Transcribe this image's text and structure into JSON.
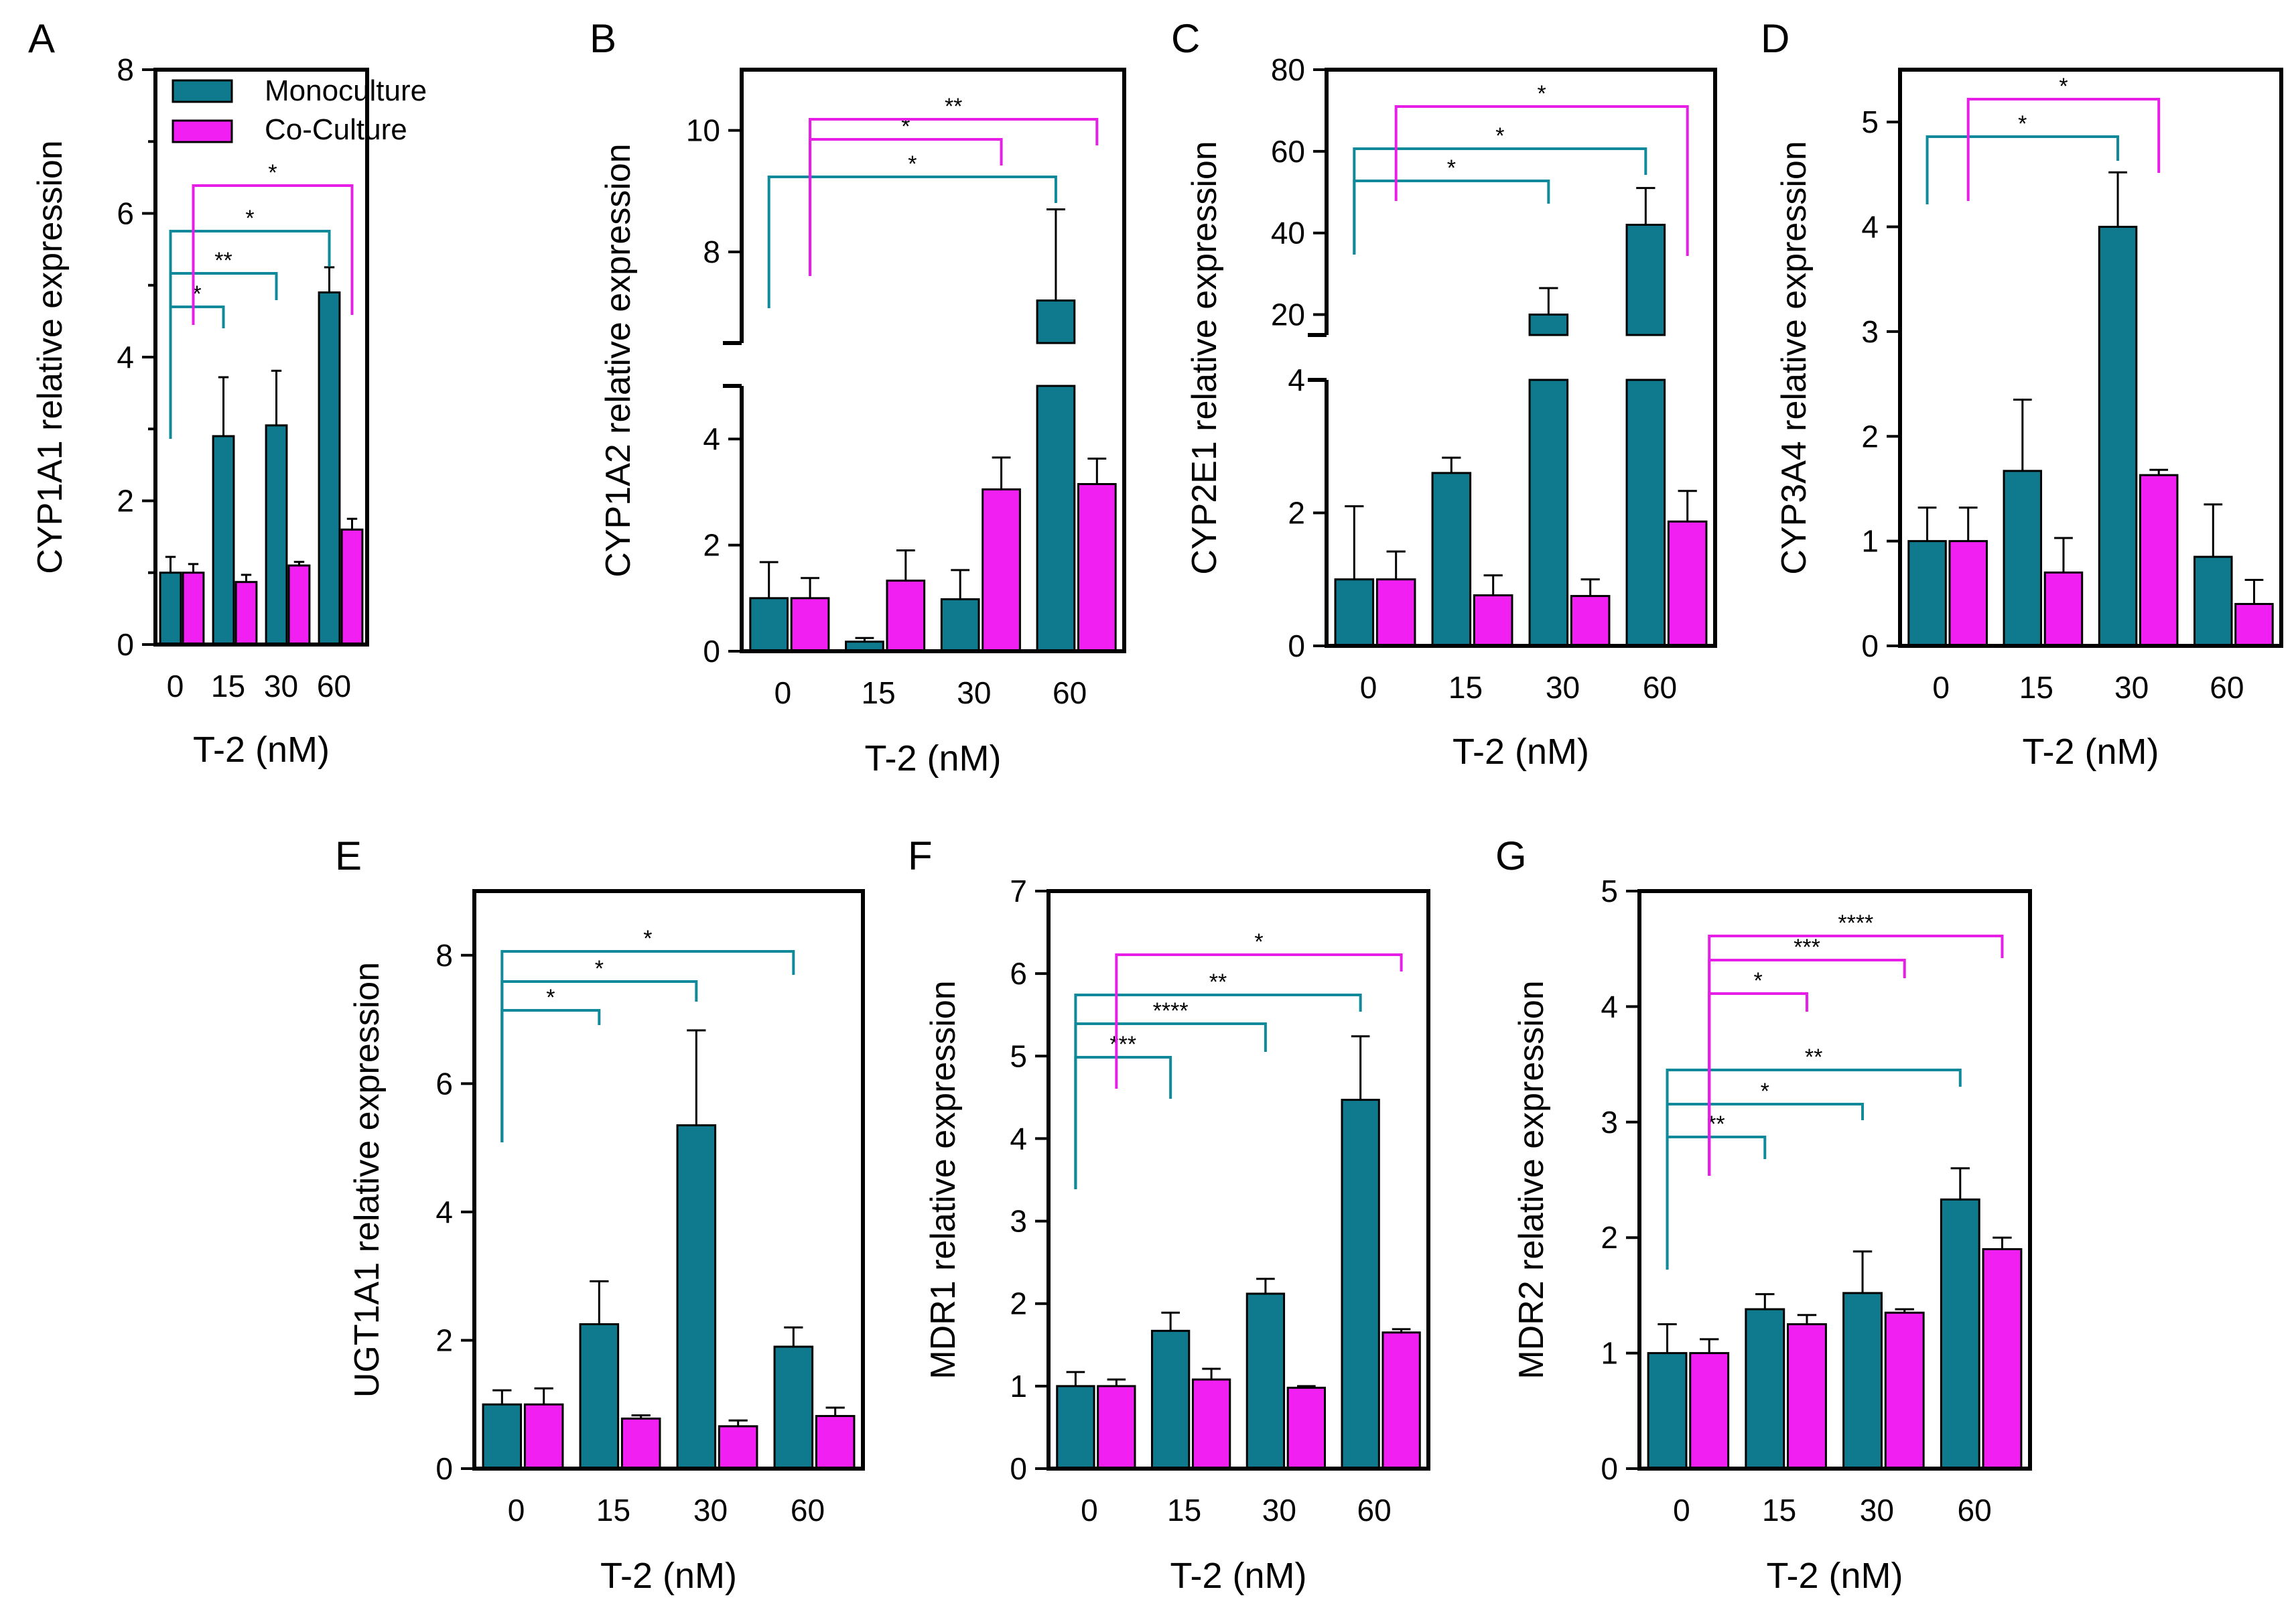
{
  "colors": {
    "mono": "#0f7a8e",
    "co": "#f21ff2",
    "sig_mono": "#108a9b",
    "sig_co": "#e61ee6"
  },
  "legend": {
    "mono": "Monoculture",
    "co": "Co-Culture"
  },
  "chart_data": [
    {
      "type": "bar",
      "panel": "A",
      "ylabel": "CYP1A1 relative expression",
      "xlabel": "T-2 (nM)",
      "categories": [
        "0",
        "15",
        "30",
        "60"
      ],
      "ylim": [
        0,
        8
      ],
      "yticks": [
        0,
        2,
        4,
        6,
        8
      ],
      "series": [
        {
          "name": "Monoculture",
          "values": [
            1.0,
            2.9,
            3.05,
            4.9
          ],
          "errors": [
            0.22,
            0.82,
            0.76,
            0.35
          ]
        },
        {
          "name": "Co-Culture",
          "values": [
            1.0,
            0.87,
            1.1,
            1.6
          ],
          "errors": [
            0.12,
            0.1,
            0.05,
            0.15
          ]
        }
      ],
      "significance": [
        {
          "series": "Monoculture",
          "from": "0",
          "to": "15",
          "label": "*"
        },
        {
          "series": "Monoculture",
          "from": "0",
          "to": "30",
          "label": "**"
        },
        {
          "series": "Monoculture",
          "from": "0",
          "to": "60",
          "label": "*"
        },
        {
          "series": "Co-Culture",
          "from": "0",
          "to": "60",
          "label": "*"
        }
      ]
    },
    {
      "type": "bar",
      "panel": "B",
      "ylabel": "CYP1A2 relative expression",
      "xlabel": "T-2 (nM)",
      "categories": [
        "0",
        "15",
        "30",
        "60"
      ],
      "axis_break": {
        "lower": [
          0,
          5
        ],
        "upper": [
          6.5,
          11
        ]
      },
      "yticks": [
        0,
        2,
        4,
        8,
        10
      ],
      "series": [
        {
          "name": "Monoculture",
          "values": [
            1.0,
            0.18,
            0.98,
            7.2
          ],
          "errors": [
            0.68,
            0.07,
            0.55,
            1.5
          ]
        },
        {
          "name": "Co-Culture",
          "values": [
            1.0,
            1.33,
            3.05,
            3.15
          ],
          "errors": [
            0.38,
            0.57,
            0.6,
            0.48
          ]
        }
      ],
      "significance": [
        {
          "series": "Monoculture",
          "from": "0",
          "to": "60",
          "label": "*"
        },
        {
          "series": "Co-Culture",
          "from": "0",
          "to": "30",
          "label": "*"
        },
        {
          "series": "Co-Culture",
          "from": "0",
          "to": "60",
          "label": "**"
        }
      ]
    },
    {
      "type": "bar",
      "panel": "C",
      "ylabel": "CYP2E1 relative expression",
      "xlabel": "T-2 (nM)",
      "categories": [
        "0",
        "15",
        "30",
        "60"
      ],
      "axis_break": {
        "lower": [
          0,
          4
        ],
        "upper": [
          15,
          80
        ]
      },
      "yticks": [
        0,
        2,
        4,
        20,
        40,
        60,
        80
      ],
      "series": [
        {
          "name": "Monoculture",
          "values": [
            1.0,
            2.6,
            20.0,
            42.0
          ],
          "errors": [
            1.1,
            0.23,
            6.5,
            9.0
          ]
        },
        {
          "name": "Co-Culture",
          "values": [
            1.0,
            0.76,
            0.75,
            1.87
          ],
          "errors": [
            0.42,
            0.3,
            0.25,
            0.46
          ]
        }
      ],
      "significance": [
        {
          "series": "Monoculture",
          "from": "0",
          "to": "30",
          "label": "*"
        },
        {
          "series": "Monoculture",
          "from": "0",
          "to": "60",
          "label": "*"
        },
        {
          "series": "Co-Culture",
          "from": "0",
          "to": "60",
          "label": "*"
        }
      ]
    },
    {
      "type": "bar",
      "panel": "D",
      "ylabel": "CYP3A4 relative expression",
      "xlabel": "T-2 (nM)",
      "categories": [
        "0",
        "15",
        "30",
        "60"
      ],
      "ylim": [
        0,
        5.5
      ],
      "yticks": [
        0,
        1,
        2,
        3,
        4,
        5
      ],
      "series": [
        {
          "name": "Monoculture",
          "values": [
            1.0,
            1.67,
            4.0,
            0.85
          ],
          "errors": [
            0.32,
            0.68,
            0.52,
            0.5
          ]
        },
        {
          "name": "Co-Culture",
          "values": [
            1.0,
            0.7,
            1.63,
            0.4
          ],
          "errors": [
            0.32,
            0.33,
            0.05,
            0.23
          ]
        }
      ],
      "significance": [
        {
          "series": "Monoculture",
          "from": "0",
          "to": "30",
          "label": "*"
        },
        {
          "series": "Co-Culture",
          "from": "0",
          "to": "30",
          "label": "*"
        }
      ]
    },
    {
      "type": "bar",
      "panel": "E",
      "ylabel": "UGT1A1 relative expression",
      "xlabel": "T-2 (nM)",
      "categories": [
        "0",
        "15",
        "30",
        "60"
      ],
      "ylim": [
        0,
        9
      ],
      "yticks": [
        0,
        2,
        4,
        6,
        8
      ],
      "series": [
        {
          "name": "Monoculture",
          "values": [
            1.0,
            2.25,
            5.35,
            1.9
          ],
          "errors": [
            0.22,
            0.67,
            1.48,
            0.3
          ]
        },
        {
          "name": "Co-Culture",
          "values": [
            1.0,
            0.78,
            0.66,
            0.82
          ],
          "errors": [
            0.25,
            0.05,
            0.09,
            0.13
          ]
        }
      ],
      "significance": [
        {
          "series": "Monoculture",
          "from": "0",
          "to": "15",
          "label": "*"
        },
        {
          "series": "Monoculture",
          "from": "0",
          "to": "30",
          "label": "*"
        },
        {
          "series": "Monoculture",
          "from": "0",
          "to": "60",
          "label": "*"
        }
      ]
    },
    {
      "type": "bar",
      "panel": "F",
      "ylabel": "MDR1 relative expression",
      "xlabel": "T-2 (nM)",
      "categories": [
        "0",
        "15",
        "30",
        "60"
      ],
      "ylim": [
        0,
        7
      ],
      "yticks": [
        0,
        1,
        2,
        3,
        4,
        5,
        6,
        7
      ],
      "series": [
        {
          "name": "Monoculture",
          "values": [
            1.0,
            1.67,
            2.12,
            4.47
          ],
          "errors": [
            0.17,
            0.22,
            0.18,
            0.77
          ]
        },
        {
          "name": "Co-Culture",
          "values": [
            1.0,
            1.08,
            0.98,
            1.65
          ],
          "errors": [
            0.08,
            0.13,
            0.02,
            0.04
          ]
        }
      ],
      "significance": [
        {
          "series": "Monoculture",
          "from": "0",
          "to": "15",
          "label": "***"
        },
        {
          "series": "Monoculture",
          "from": "0",
          "to": "30",
          "label": "****"
        },
        {
          "series": "Monoculture",
          "from": "0",
          "to": "60",
          "label": "**"
        },
        {
          "series": "Co-Culture",
          "from": "0",
          "to": "60",
          "label": "*"
        }
      ]
    },
    {
      "type": "bar",
      "panel": "G",
      "ylabel": "MDR2 relative expression",
      "xlabel": "T-2 (nM)",
      "categories": [
        "0",
        "15",
        "30",
        "60"
      ],
      "ylim": [
        0,
        5
      ],
      "yticks": [
        0,
        1,
        2,
        3,
        4,
        5
      ],
      "series": [
        {
          "name": "Monoculture",
          "values": [
            1.0,
            1.38,
            1.52,
            2.33
          ],
          "errors": [
            0.25,
            0.13,
            0.36,
            0.27
          ]
        },
        {
          "name": "Co-Culture",
          "values": [
            1.0,
            1.25,
            1.35,
            1.9
          ],
          "errors": [
            0.12,
            0.08,
            0.03,
            0.1
          ]
        }
      ],
      "significance": [
        {
          "series": "Monoculture",
          "from": "0",
          "to": "15",
          "label": "**"
        },
        {
          "series": "Monoculture",
          "from": "0",
          "to": "30",
          "label": "*"
        },
        {
          "series": "Monoculture",
          "from": "0",
          "to": "60",
          "label": "**"
        },
        {
          "series": "Co-Culture",
          "from": "0",
          "to": "15",
          "label": "*"
        },
        {
          "series": "Co-Culture",
          "from": "0",
          "to": "30",
          "label": "***"
        },
        {
          "series": "Co-Culture",
          "from": "0",
          "to": "60",
          "label": "****"
        }
      ]
    }
  ]
}
